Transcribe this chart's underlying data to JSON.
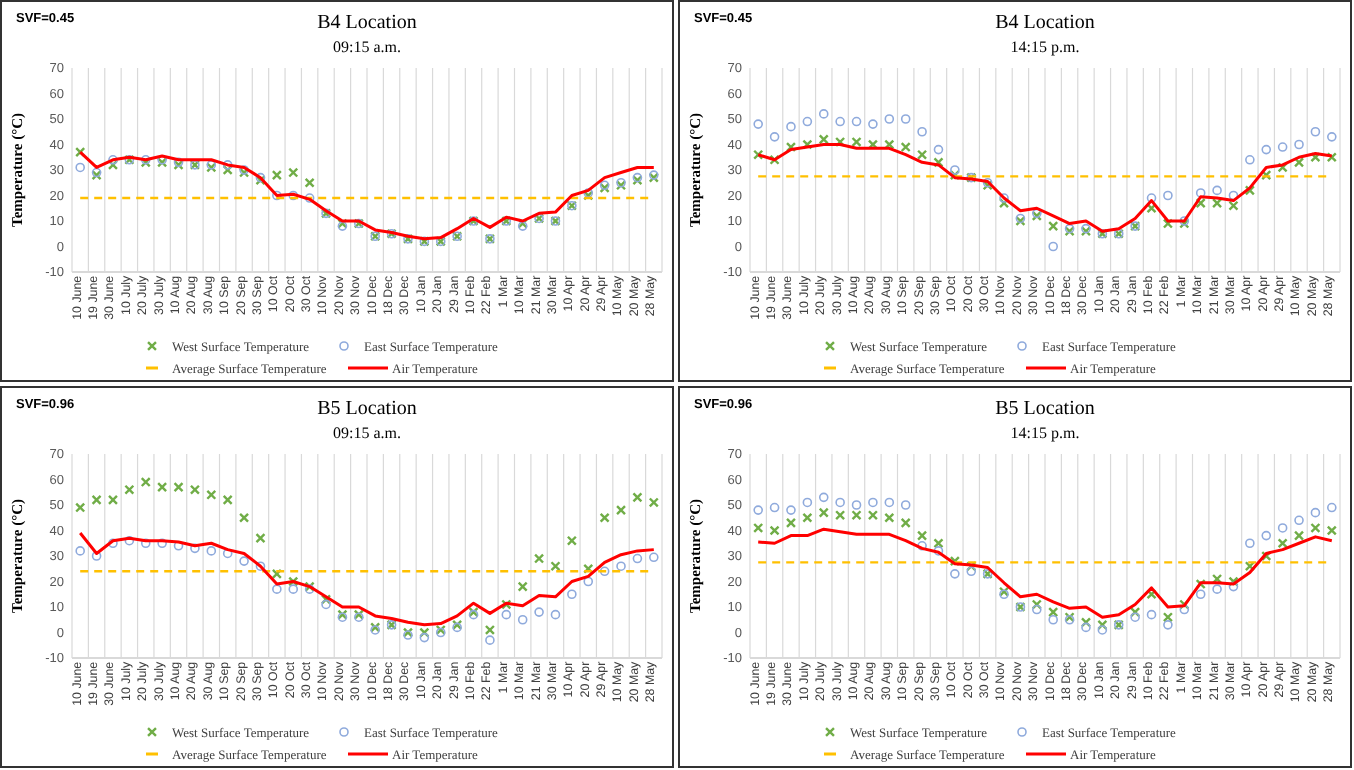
{
  "chart_data": [
    {
      "type": "line",
      "title": "B4 Location",
      "subtitle": "09:15 a.m.",
      "ylabel": "Temperature (°C)",
      "annotations": [
        "SVF=0.45"
      ],
      "categories": [
        "10 June",
        "19 June",
        "30 June",
        "10 July",
        "20 July",
        "30 July",
        "10 Aug",
        "20 Aug",
        "30 Aug",
        "10 Sep",
        "20 Sep",
        "30 Sep",
        "10 Oct",
        "20 Oct",
        "30 Oct",
        "10 Nov",
        "20 Nov",
        "30 Nov",
        "10 Dec",
        "18 Dec",
        "30 Dec",
        "10 Jan",
        "20 Jan",
        "29 Jan",
        "10 Feb",
        "22 Feb",
        "1 Mar",
        "10 Mar",
        "21 Mar",
        "30 Mar",
        "10 Apr",
        "20 Apr",
        "29 Apr",
        "10 May",
        "20 May",
        "28 May"
      ],
      "ylim": [
        -10,
        70
      ],
      "yticks": [
        -10,
        0,
        10,
        20,
        30,
        40,
        50,
        60,
        70
      ],
      "grid": "x",
      "legend": "bottom",
      "series": [
        {
          "name": "West Surface Temperature",
          "type": "scatter",
          "marker": "cross",
          "color": "#70ad47",
          "values": [
            37,
            28,
            32,
            34,
            33,
            33,
            32,
            32,
            31,
            30,
            29,
            26,
            28,
            29,
            25,
            13,
            9,
            9,
            4,
            5,
            3,
            2,
            2,
            4,
            10,
            3,
            10,
            9,
            11,
            10,
            16,
            20,
            23,
            24,
            26,
            27
          ]
        },
        {
          "name": "East Surface Temperature",
          "type": "scatter",
          "marker": "circle",
          "color": "#8faadc",
          "values": [
            31,
            29,
            34,
            34,
            34,
            34,
            33,
            32,
            32,
            32,
            30,
            27,
            20,
            20,
            19,
            13,
            8,
            9,
            4,
            5,
            3,
            2,
            2,
            4,
            10,
            3,
            10,
            8,
            11,
            10,
            16,
            21,
            24,
            25,
            27,
            28
          ]
        },
        {
          "name": "Average Surface Temperature",
          "line_style": "dashed",
          "color": "#ffc000",
          "values": [
            19,
            19,
            19,
            19,
            19,
            19,
            19,
            19,
            19,
            19,
            19,
            19,
            19,
            19,
            19,
            19,
            19,
            19,
            19,
            19,
            19,
            19,
            19,
            19,
            19,
            19,
            19,
            19,
            19,
            19,
            19,
            19,
            19,
            19,
            19,
            19
          ]
        },
        {
          "name": "Air Temperature",
          "line_style": "solid",
          "color": "#ff0000",
          "values": [
            37,
            31,
            34,
            35,
            34,
            35.5,
            34,
            34,
            34,
            32,
            31,
            27,
            20,
            20.5,
            18.5,
            14,
            10,
            10,
            6.5,
            5.5,
            4,
            3,
            3.5,
            7,
            11,
            7.5,
            11.5,
            10,
            13,
            13.5,
            20,
            22,
            27,
            29,
            31,
            31
          ]
        }
      ]
    },
    {
      "type": "line",
      "title": "B4 Location",
      "subtitle": "14:15 p.m.",
      "ylabel": "Temperature (°C)",
      "annotations": [
        "SVF=0.45"
      ],
      "categories": [
        "10 June",
        "19 June",
        "30 June",
        "10 July",
        "20 July",
        "30 July",
        "10 Aug",
        "20 Aug",
        "30 Aug",
        "10 Sep",
        "20 Sep",
        "30 Sep",
        "10 Oct",
        "20 Oct",
        "30 Oct",
        "10 Nov",
        "20 Nov",
        "30 Nov",
        "10 Dec",
        "18 Dec",
        "30 Dec",
        "10 Jan",
        "20 Jan",
        "29 Jan",
        "10 Feb",
        "22 Feb",
        "1 Mar",
        "10 Mar",
        "21 Mar",
        "30 Mar",
        "10 Apr",
        "20 Apr",
        "29 Apr",
        "10 May",
        "20 May",
        "28 May"
      ],
      "ylim": [
        -10,
        70
      ],
      "yticks": [
        -10,
        0,
        10,
        20,
        30,
        40,
        50,
        60,
        70
      ],
      "grid": "x",
      "legend": "bottom",
      "series": [
        {
          "name": "West Surface Temperature",
          "type": "scatter",
          "marker": "cross",
          "color": "#70ad47",
          "values": [
            36,
            34,
            39,
            40,
            42,
            41,
            41,
            40,
            40,
            39,
            36,
            33,
            28,
            27,
            24,
            17,
            10,
            12,
            8,
            6,
            6,
            5,
            5,
            8,
            15,
            9,
            9,
            17,
            17,
            16,
            22,
            28,
            31,
            33,
            35,
            35
          ]
        },
        {
          "name": "East Surface Temperature",
          "type": "scatter",
          "marker": "circle",
          "color": "#8faadc",
          "values": [
            48,
            43,
            47,
            49,
            52,
            49,
            49,
            48,
            50,
            50,
            45,
            38,
            30,
            27,
            25,
            19,
            11,
            13,
            0,
            7,
            7,
            5,
            5,
            8,
            19,
            20,
            10,
            21,
            22,
            20,
            34,
            38,
            39,
            40,
            45,
            43
          ]
        },
        {
          "name": "Average Surface Temperature",
          "line_style": "dashed",
          "color": "#ffc000",
          "values": [
            27.5,
            27.5,
            27.5,
            27.5,
            27.5,
            27.5,
            27.5,
            27.5,
            27.5,
            27.5,
            27.5,
            27.5,
            27.5,
            27.5,
            27.5,
            27.5,
            27.5,
            27.5,
            27.5,
            27.5,
            27.5,
            27.5,
            27.5,
            27.5,
            27.5,
            27.5,
            27.5,
            27.5,
            27.5,
            27.5,
            27.5,
            27.5,
            27.5,
            27.5,
            27.5,
            27.5
          ]
        },
        {
          "name": "Air Temperature",
          "line_style": "solid",
          "color": "#ff0000",
          "values": [
            36,
            34,
            38,
            39,
            40,
            40,
            38.5,
            38.5,
            38.5,
            36,
            33,
            32,
            27,
            26.5,
            25.5,
            19,
            14,
            15,
            12,
            9,
            10,
            6,
            7,
            11,
            18,
            10,
            10,
            19.5,
            19,
            18,
            23,
            31,
            32,
            35,
            36.5,
            35.5
          ]
        }
      ]
    },
    {
      "type": "line",
      "title": "B5 Location",
      "subtitle": "09:15 a.m.",
      "ylabel": "Temperature (°C)",
      "annotations": [
        "SVF=0.96"
      ],
      "categories": [
        "10 June",
        "19 June",
        "30 June",
        "10 July",
        "20 July",
        "30 July",
        "10 Aug",
        "20 Aug",
        "30 Aug",
        "10 Sep",
        "20 Sep",
        "30 Sep",
        "10 Oct",
        "20 Oct",
        "30 Oct",
        "10 Nov",
        "20 Nov",
        "30 Nov",
        "10 Dec",
        "18 Dec",
        "30 Dec",
        "10 Jan",
        "20 Jan",
        "29 Jan",
        "10 Feb",
        "22 Feb",
        "1 Mar",
        "10 Mar",
        "21 Mar",
        "30 Mar",
        "10 Apr",
        "20 Apr",
        "29 Apr",
        "10 May",
        "20 May",
        "28 May"
      ],
      "ylim": [
        -10,
        70
      ],
      "yticks": [
        -10,
        0,
        10,
        20,
        30,
        40,
        50,
        60,
        70
      ],
      "grid": "x",
      "legend": "bottom",
      "series": [
        {
          "name": "West Surface Temperature",
          "type": "scatter",
          "marker": "cross",
          "color": "#70ad47",
          "values": [
            49,
            52,
            52,
            56,
            59,
            57,
            57,
            56,
            54,
            52,
            45,
            37,
            23,
            20,
            18,
            13,
            7,
            7,
            2,
            3,
            0,
            0,
            1,
            3,
            8,
            1,
            11,
            18,
            29,
            26,
            36,
            25,
            45,
            48,
            53,
            51
          ]
        },
        {
          "name": "East Surface Temperature",
          "type": "scatter",
          "marker": "circle",
          "color": "#8faadc",
          "values": [
            32,
            30,
            35,
            36,
            35,
            35,
            34,
            33,
            32,
            31,
            28,
            26,
            17,
            17,
            17,
            11,
            6,
            6,
            1,
            3,
            -1,
            -2,
            0,
            2,
            7,
            -3,
            7,
            5,
            8,
            7,
            15,
            20,
            24,
            26,
            29,
            29.5
          ]
        },
        {
          "name": "Average Surface Temperature",
          "line_style": "dashed",
          "color": "#ffc000",
          "values": [
            24,
            24,
            24,
            24,
            24,
            24,
            24,
            24,
            24,
            24,
            24,
            24,
            24,
            24,
            24,
            24,
            24,
            24,
            24,
            24,
            24,
            24,
            24,
            24,
            24,
            24,
            24,
            24,
            24,
            24,
            24,
            24,
            24,
            24,
            24,
            24
          ]
        },
        {
          "name": "Air Temperature",
          "line_style": "solid",
          "color": "#ff0000",
          "values": [
            39,
            31,
            36,
            37,
            36,
            36,
            35.5,
            34,
            35,
            32.5,
            31,
            26,
            19,
            20,
            18,
            14,
            10,
            10,
            6.5,
            5.5,
            4,
            3,
            3.5,
            6.5,
            11.5,
            7.5,
            11.5,
            10.5,
            14.5,
            14,
            20,
            22,
            27.5,
            30.5,
            32,
            32.5
          ]
        }
      ]
    },
    {
      "type": "line",
      "title": "B5 Location",
      "subtitle": "14:15 p.m.",
      "ylabel": "Temperature (°C)",
      "annotations": [
        "SVF=0.96"
      ],
      "categories": [
        "10 June",
        "19 June",
        "30 June",
        "10 July",
        "20 July",
        "30 July",
        "10 Aug",
        "20 Aug",
        "30 Aug",
        "10 Sep",
        "20 Sep",
        "30 Sep",
        "10 Oct",
        "20 Oct",
        "30 Oct",
        "10 Nov",
        "20 Nov",
        "30 Nov",
        "10 Dec",
        "18 Dec",
        "30 Dec",
        "10 Jan",
        "20 Jan",
        "29 Jan",
        "10 Feb",
        "22 Feb",
        "1 Mar",
        "10 Mar",
        "21 Mar",
        "30 Mar",
        "10 Apr",
        "20 Apr",
        "29 Apr",
        "10 May",
        "20 May",
        "28 May"
      ],
      "ylim": [
        -10,
        70
      ],
      "yticks": [
        -10,
        0,
        10,
        20,
        30,
        40,
        50,
        60,
        70
      ],
      "grid": "x",
      "legend": "bottom",
      "series": [
        {
          "name": "West Surface Temperature",
          "type": "scatter",
          "marker": "cross",
          "color": "#70ad47",
          "values": [
            41,
            40,
            43,
            45,
            47,
            46,
            46,
            46,
            45,
            43,
            38,
            35,
            28,
            26,
            23,
            16,
            10,
            11,
            8,
            6,
            4,
            3,
            3,
            8,
            15,
            6,
            11,
            19,
            21,
            20,
            26,
            30,
            35,
            38,
            41,
            40
          ]
        },
        {
          "name": "East Surface Temperature",
          "type": "scatter",
          "marker": "circle",
          "color": "#8faadc",
          "values": [
            48,
            49,
            48,
            51,
            53,
            51,
            50,
            51,
            51,
            50,
            34,
            32,
            23,
            24,
            23,
            15,
            10,
            9,
            5,
            5,
            2,
            1,
            3,
            6,
            7,
            3,
            9,
            15,
            17,
            18,
            35,
            38,
            41,
            44,
            47,
            49
          ]
        },
        {
          "name": "Average Surface Temperature",
          "line_style": "dashed",
          "color": "#ffc000",
          "values": [
            27.5,
            27.5,
            27.5,
            27.5,
            27.5,
            27.5,
            27.5,
            27.5,
            27.5,
            27.5,
            27.5,
            27.5,
            27.5,
            27.5,
            27.5,
            27.5,
            27.5,
            27.5,
            27.5,
            27.5,
            27.5,
            27.5,
            27.5,
            27.5,
            27.5,
            27.5,
            27.5,
            27.5,
            27.5,
            27.5,
            27.5,
            27.5,
            27.5,
            27.5,
            27.5,
            27.5
          ]
        },
        {
          "name": "Air Temperature",
          "line_style": "solid",
          "color": "#ff0000",
          "values": [
            35.5,
            35,
            38,
            38,
            40.5,
            39.5,
            38.5,
            38.5,
            38.5,
            36,
            33,
            31.5,
            27,
            26.5,
            25.5,
            19.5,
            14,
            15,
            12,
            9.5,
            10,
            6,
            7,
            11,
            17.5,
            10,
            10.5,
            19.5,
            19.5,
            19,
            23.5,
            31,
            32.5,
            35,
            37.5,
            36
          ]
        }
      ]
    }
  ]
}
